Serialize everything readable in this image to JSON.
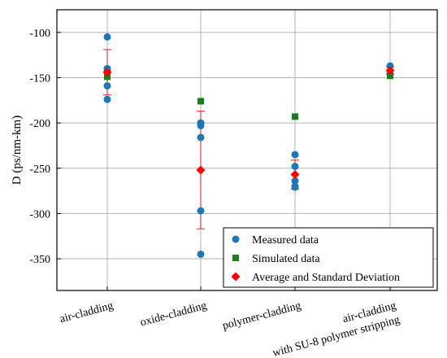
{
  "chart_data": {
    "type": "scatter",
    "ylabel": "D (ps/nm-km)",
    "ylim": [
      -385,
      -75
    ],
    "yticks": [
      -100,
      -150,
      -200,
      -250,
      -300,
      -350
    ],
    "grid": true,
    "legend_position": "bottom-right",
    "categories": [
      [
        "air-cladding"
      ],
      [
        "oxide-cladding"
      ],
      [
        "polymer-cladding"
      ],
      [
        "air-cladding",
        "with SU-8 polymer stripping"
      ]
    ],
    "series": [
      {
        "name": "Measured data",
        "marker": "circle",
        "color": "#1f77b4",
        "points": [
          [
            0,
            -105
          ],
          [
            0,
            -140
          ],
          [
            0,
            -143
          ],
          [
            0,
            -159
          ],
          [
            0,
            -174
          ],
          [
            1,
            -200
          ],
          [
            1,
            -203
          ],
          [
            1,
            -216
          ],
          [
            1,
            -297
          ],
          [
            1,
            -345
          ],
          [
            2,
            -235
          ],
          [
            2,
            -248
          ],
          [
            2,
            -264
          ],
          [
            2,
            -270
          ],
          [
            2,
            -271
          ],
          [
            3,
            -137
          ],
          [
            3,
            -146
          ]
        ]
      },
      {
        "name": "Simulated data",
        "marker": "square",
        "color": "#1a7f1a",
        "points": [
          [
            0,
            -149
          ],
          [
            1,
            -176
          ],
          [
            2,
            -193
          ],
          [
            3,
            -148
          ]
        ]
      },
      {
        "name": "Average and Standard Deviation",
        "marker": "diamond",
        "color": "#ff0000",
        "error_color": "#e0404a",
        "points": [
          {
            "x": 0,
            "mean": -144,
            "sd": 25
          },
          {
            "x": 1,
            "mean": -252,
            "sd": 65
          },
          {
            "x": 2,
            "mean": -257,
            "sd": 16
          },
          {
            "x": 3,
            "mean": -142,
            "sd": 4
          }
        ]
      }
    ]
  }
}
